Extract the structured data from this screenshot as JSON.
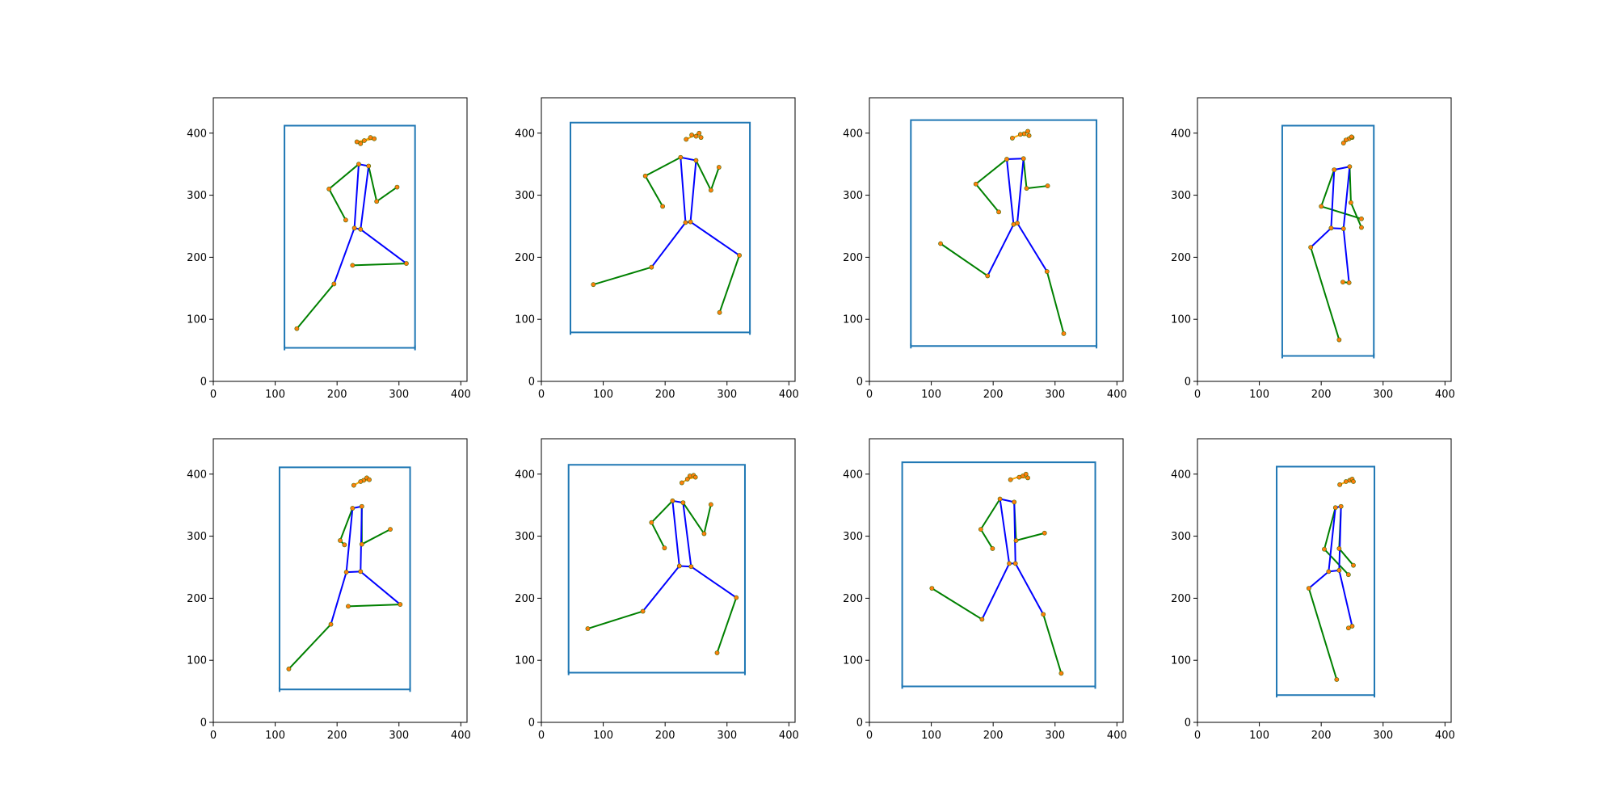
{
  "chart_data": {
    "type": "scatter",
    "description_kind": "pose-skeleton-grid",
    "xlim": [
      0,
      410
    ],
    "ylim": [
      0,
      457
    ],
    "xticks": [
      0,
      100,
      200,
      300,
      400
    ],
    "yticks": [
      0,
      100,
      200,
      300,
      400
    ],
    "grid": false,
    "colors": {
      "box": "#1f77b4",
      "head": "#ffa500",
      "body": "#0000ff",
      "limbs": "#008000",
      "joint_marker": "#ff7f0e"
    },
    "skeletons": [
      "0:1",
      "0:2",
      "1:3",
      "2:4",
      "5:6",
      "5:7",
      "6:8",
      "7:9",
      "8:10",
      "5:11",
      "6:12",
      "11:12",
      "11:13",
      "12:14",
      "13:15",
      "14:16"
    ],
    "panels": [
      {
        "box": [
          115,
          54,
          326,
          412
        ],
        "keypoints": [
          [
            238,
            383
          ],
          [
            244,
            388
          ],
          [
            232,
            386
          ],
          [
            254,
            393
          ],
          [
            260,
            391
          ],
          [
            235,
            350
          ],
          [
            251,
            347
          ],
          [
            187,
            310
          ],
          [
            264,
            290
          ],
          [
            214,
            260
          ],
          [
            297,
            313
          ],
          [
            228,
            247
          ],
          [
            238,
            245
          ],
          [
            195,
            157
          ],
          [
            312,
            190
          ],
          [
            135,
            85
          ],
          [
            225,
            187
          ]
        ]
      },
      {
        "box": [
          47,
          79,
          337,
          417
        ],
        "keypoints": [
          [
            250,
            395
          ],
          [
            255,
            400
          ],
          [
            243,
            397
          ],
          [
            234,
            390
          ],
          [
            258,
            393
          ],
          [
            225,
            361
          ],
          [
            250,
            356
          ],
          [
            168,
            331
          ],
          [
            274,
            308
          ],
          [
            196,
            282
          ],
          [
            287,
            345
          ],
          [
            233,
            256
          ],
          [
            241,
            257
          ],
          [
            178,
            184
          ],
          [
            320,
            203
          ],
          [
            84,
            156
          ],
          [
            288,
            111
          ]
        ]
      },
      {
        "box": [
          67,
          57,
          367,
          421
        ],
        "keypoints": [
          [
            250,
            399
          ],
          [
            256,
            403
          ],
          [
            244,
            398
          ],
          [
            231,
            392
          ],
          [
            258,
            396
          ],
          [
            222,
            358
          ],
          [
            249,
            359
          ],
          [
            172,
            318
          ],
          [
            254,
            311
          ],
          [
            209,
            273
          ],
          [
            288,
            315
          ],
          [
            233,
            253
          ],
          [
            239,
            255
          ],
          [
            191,
            170
          ],
          [
            287,
            177
          ],
          [
            115,
            222
          ],
          [
            314,
            77
          ]
        ]
      },
      {
        "box": [
          137,
          41,
          285,
          412
        ],
        "keypoints": [
          [
            245,
            391
          ],
          [
            250,
            393
          ],
          [
            240,
            389
          ],
          [
            236,
            384
          ],
          [
            249,
            394
          ],
          [
            221,
            341
          ],
          [
            246,
            346
          ],
          [
            200,
            282
          ],
          [
            248,
            288
          ],
          [
            265,
            262
          ],
          [
            265,
            248
          ],
          [
            216,
            247
          ],
          [
            236,
            246
          ],
          [
            183,
            216
          ],
          [
            245,
            159
          ],
          [
            229,
            67
          ],
          [
            235,
            160
          ]
        ]
      },
      {
        "box": [
          107,
          53,
          318,
          411
        ],
        "keypoints": [
          [
            243,
            390
          ],
          [
            248,
            394
          ],
          [
            238,
            388
          ],
          [
            227,
            382
          ],
          [
            252,
            391
          ],
          [
            225,
            345
          ],
          [
            240,
            348
          ],
          [
            205,
            293
          ],
          [
            240,
            287
          ],
          [
            212,
            286
          ],
          [
            286,
            311
          ],
          [
            215,
            242
          ],
          [
            238,
            243
          ],
          [
            190,
            158
          ],
          [
            302,
            190
          ],
          [
            122,
            86
          ],
          [
            218,
            187
          ]
        ]
      },
      {
        "box": [
          44,
          80,
          329,
          415
        ],
        "keypoints": [
          [
            240,
            397
          ],
          [
            246,
            398
          ],
          [
            236,
            392
          ],
          [
            227,
            386
          ],
          [
            249,
            395
          ],
          [
            212,
            357
          ],
          [
            229,
            354
          ],
          [
            178,
            322
          ],
          [
            263,
            304
          ],
          [
            199,
            281
          ],
          [
            274,
            351
          ],
          [
            223,
            252
          ],
          [
            242,
            251
          ],
          [
            164,
            179
          ],
          [
            315,
            201
          ],
          [
            75,
            151
          ],
          [
            284,
            112
          ]
        ]
      },
      {
        "box": [
          53,
          58,
          365,
          419
        ],
        "keypoints": [
          [
            248,
            397
          ],
          [
            253,
            400
          ],
          [
            242,
            395
          ],
          [
            228,
            391
          ],
          [
            256,
            394
          ],
          [
            211,
            360
          ],
          [
            234,
            355
          ],
          [
            180,
            311
          ],
          [
            237,
            293
          ],
          [
            199,
            280
          ],
          [
            283,
            305
          ],
          [
            226,
            256
          ],
          [
            236,
            256
          ],
          [
            182,
            166
          ],
          [
            281,
            174
          ],
          [
            101,
            216
          ],
          [
            310,
            79
          ]
        ]
      },
      {
        "box": [
          128,
          44,
          286,
          412
        ],
        "keypoints": [
          [
            246,
            390
          ],
          [
            250,
            392
          ],
          [
            240,
            388
          ],
          [
            230,
            383
          ],
          [
            252,
            388
          ],
          [
            223,
            346
          ],
          [
            232,
            348
          ],
          [
            205,
            279
          ],
          [
            229,
            280
          ],
          [
            244,
            238
          ],
          [
            252,
            253
          ],
          [
            212,
            243
          ],
          [
            229,
            245
          ],
          [
            180,
            216
          ],
          [
            250,
            155
          ],
          [
            225,
            69
          ],
          [
            244,
            152
          ]
        ]
      }
    ]
  }
}
